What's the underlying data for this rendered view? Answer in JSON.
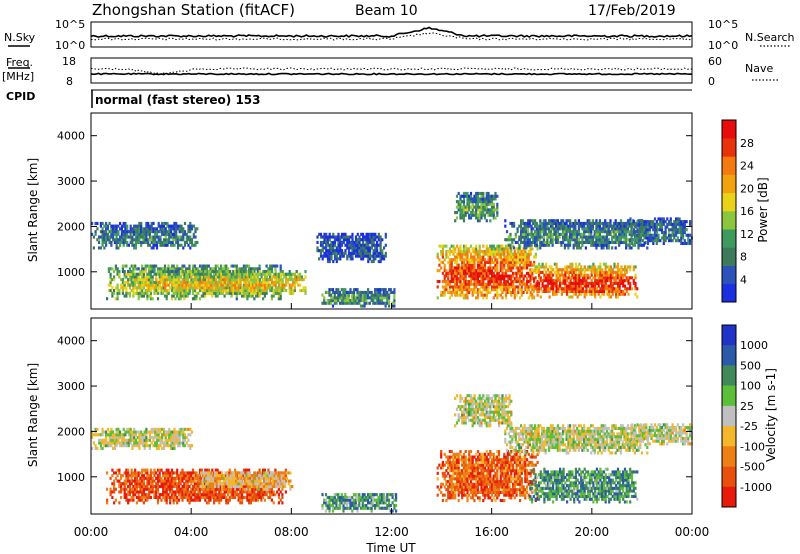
{
  "header": {
    "station": "Zhongshan Station (fitACF)",
    "beam": "Beam 10",
    "date": "17/Feb/2019"
  },
  "noise_panel": {
    "left_label_1": "N.Sky",
    "right_label_1": "N.Search",
    "left_ticks": [
      "10^5",
      "10^0"
    ],
    "right_ticks": [
      "10^5",
      "10^0"
    ]
  },
  "freq_panel": {
    "left_label_line1": "Freq.",
    "left_label_line2": "[MHz]",
    "right_label": "Nave",
    "left_ticks": [
      "18",
      "8"
    ],
    "right_ticks": [
      "60",
      "0"
    ]
  },
  "cpid": {
    "label": "CPID",
    "text": "normal (fast stereo) 153"
  },
  "x_axis": {
    "label": "Time UT",
    "tick_labels": [
      "00:00",
      "04:00",
      "08:00",
      "12:00",
      "16:00",
      "20:00",
      "00:00"
    ],
    "range_hours": [
      0,
      24
    ]
  },
  "chart_data": [
    {
      "type": "heatmap",
      "title": "",
      "xlabel": "Time UT",
      "ylabel": "Slant Range [km]",
      "ylim": [
        180,
        4500
      ],
      "y_ticks": [
        1000,
        2000,
        3000,
        4000
      ],
      "colorbar_label": "Power [dB]",
      "colorbar_ticks": [
        "4",
        "8",
        "12",
        "16",
        "20",
        "24",
        "28"
      ],
      "colorbar_range": [
        0,
        32
      ],
      "colors": [
        "#1c2fe0",
        "#2a52b8",
        "#3c7a5a",
        "#3f9a5e",
        "#8cc63f",
        "#e8d21a",
        "#f2a10f",
        "#f27a10",
        "#e8320c",
        "#e80c0c"
      ],
      "echo_regions": [
        {
          "t": [
            0.0,
            4.2
          ],
          "r": [
            1500,
            2050
          ],
          "level": 0.28
        },
        {
          "t": [
            0.6,
            7.6
          ],
          "r": [
            380,
            1150
          ],
          "level": 0.5
        },
        {
          "t": [
            2.5,
            8.6
          ],
          "r": [
            500,
            1000
          ],
          "level": 0.65
        },
        {
          "t": [
            9.0,
            11.8
          ],
          "r": [
            1200,
            1850
          ],
          "level": 0.15
        },
        {
          "t": [
            9.2,
            12.2
          ],
          "r": [
            220,
            600
          ],
          "level": 0.35
        },
        {
          "t": [
            13.8,
            17.8
          ],
          "r": [
            400,
            1600
          ],
          "level": 0.9
        },
        {
          "t": [
            14.5,
            16.2
          ],
          "r": [
            2100,
            2750
          ],
          "level": 0.35
        },
        {
          "t": [
            17.5,
            21.8
          ],
          "r": [
            420,
            1150
          ],
          "level": 0.95
        },
        {
          "t": [
            16.5,
            22.2
          ],
          "r": [
            1500,
            2150
          ],
          "level": 0.3
        },
        {
          "t": [
            21.5,
            24.0
          ],
          "r": [
            1600,
            2150
          ],
          "level": 0.25
        }
      ]
    },
    {
      "type": "heatmap",
      "title": "",
      "xlabel": "Time UT",
      "ylabel": "Slant Range [km]",
      "ylim": [
        180,
        4500
      ],
      "y_ticks": [
        1000,
        2000,
        3000,
        4000
      ],
      "colorbar_label": "Velocity [m s-1]",
      "colorbar_ticks": [
        "1000",
        "500",
        "100",
        "25",
        "-25",
        "-100",
        "-500",
        "-1000"
      ],
      "colors": [
        "#2033c8",
        "#2a5aa8",
        "#3f8a58",
        "#5dbe3a",
        "#c0c0c0",
        "#f4b62a",
        "#ee7e16",
        "#e8500e",
        "#e81a0c"
      ],
      "echo_regions": [
        {
          "t": [
            0.0,
            4.0
          ],
          "r": [
            1600,
            2050
          ],
          "level": 0.5
        },
        {
          "t": [
            0.6,
            7.8
          ],
          "r": [
            400,
            1150
          ],
          "level": 0.85
        },
        {
          "t": [
            4.0,
            8.0
          ],
          "r": [
            700,
            1100
          ],
          "level": 0.6
        },
        {
          "t": [
            9.2,
            12.2
          ],
          "r": [
            220,
            600
          ],
          "level": 0.3
        },
        {
          "t": [
            13.8,
            17.8
          ],
          "r": [
            450,
            1550
          ],
          "level": 0.8
        },
        {
          "t": [
            14.5,
            16.8
          ],
          "r": [
            2100,
            2800
          ],
          "level": 0.5
        },
        {
          "t": [
            17.5,
            21.8
          ],
          "r": [
            420,
            1150
          ],
          "level": 0.3
        },
        {
          "t": [
            16.5,
            22.2
          ],
          "r": [
            1500,
            2150
          ],
          "level": 0.5
        },
        {
          "t": [
            21.5,
            24.0
          ],
          "r": [
            1700,
            2150
          ],
          "level": 0.5
        }
      ]
    }
  ]
}
